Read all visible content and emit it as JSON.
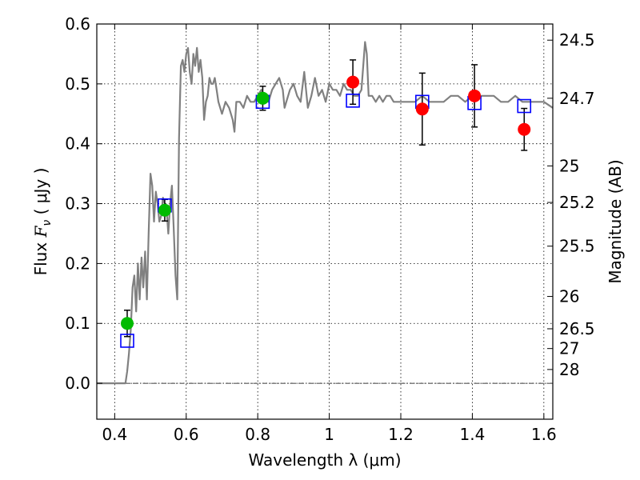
{
  "chart_data": {
    "type": "scatter",
    "xlabel": "Wavelength  λ (μm)",
    "ylabel_prefix": "Flux  ",
    "ylabel_sym": "F",
    "ylabel_sub": "ν",
    "ylabel_suffix": "  ( μJy )",
    "y2label": "Magnitude (AB)",
    "xlim": [
      0.35,
      1.625
    ],
    "ylim": [
      -0.06,
      0.6
    ],
    "xticks": [
      0.4,
      0.6,
      0.8,
      1.0,
      1.2,
      1.4,
      1.6
    ],
    "xtick_labels": [
      "0.4",
      "0.6",
      "0.8",
      "1",
      "1.2",
      "1.4",
      "1.6"
    ],
    "yticks": [
      0.0,
      0.1,
      0.2,
      0.3,
      0.4,
      0.5,
      0.6
    ],
    "ytick_labels": [
      "0.0",
      "0.1",
      "0.2",
      "0.3",
      "0.4",
      "0.5",
      "0.6"
    ],
    "y2ticks": [
      {
        "label": "24.5",
        "flux": 0.573
      },
      {
        "label": "24.7",
        "flux": 0.476
      },
      {
        "label": "25",
        "flux": 0.363
      },
      {
        "label": "25.2",
        "flux": 0.302
      },
      {
        "label": "25.5",
        "flux": 0.229
      },
      {
        "label": "26",
        "flux": 0.145
      },
      {
        "label": "26.5",
        "flux": 0.091
      },
      {
        "label": "27",
        "flux": 0.058
      },
      {
        "label": "28",
        "flux": 0.023
      }
    ],
    "grid": true,
    "zero_line": 0.0,
    "colors": {
      "template": "#808080",
      "green": "#00bb00",
      "red": "#ff0000",
      "model": "#0000ff",
      "errorbar": "#000000"
    },
    "series": [
      {
        "name": "template spectrum",
        "style": "line",
        "x": [
          0.35,
          0.43,
          0.435,
          0.44,
          0.445,
          0.45,
          0.455,
          0.46,
          0.465,
          0.47,
          0.475,
          0.48,
          0.485,
          0.49,
          0.495,
          0.5,
          0.505,
          0.51,
          0.515,
          0.52,
          0.525,
          0.53,
          0.535,
          0.54,
          0.545,
          0.55,
          0.555,
          0.56,
          0.565,
          0.57,
          0.575,
          0.58,
          0.585,
          0.59,
          0.595,
          0.6,
          0.605,
          0.61,
          0.615,
          0.62,
          0.625,
          0.63,
          0.635,
          0.64,
          0.645,
          0.65,
          0.655,
          0.66,
          0.665,
          0.67,
          0.675,
          0.68,
          0.685,
          0.69,
          0.7,
          0.71,
          0.72,
          0.73,
          0.735,
          0.74,
          0.75,
          0.76,
          0.77,
          0.78,
          0.79,
          0.8,
          0.81,
          0.82,
          0.83,
          0.84,
          0.85,
          0.86,
          0.87,
          0.875,
          0.88,
          0.89,
          0.9,
          0.91,
          0.92,
          0.93,
          0.94,
          0.95,
          0.96,
          0.97,
          0.98,
          0.99,
          1.0,
          1.01,
          1.02,
          1.03,
          1.04,
          1.05,
          1.06,
          1.07,
          1.08,
          1.09,
          1.1,
          1.105,
          1.11,
          1.12,
          1.13,
          1.14,
          1.15,
          1.16,
          1.17,
          1.18,
          1.19,
          1.2,
          1.22,
          1.24,
          1.26,
          1.28,
          1.3,
          1.32,
          1.34,
          1.36,
          1.38,
          1.4,
          1.42,
          1.44,
          1.46,
          1.48,
          1.5,
          1.52,
          1.54,
          1.56,
          1.58,
          1.6,
          1.625
        ],
        "y": [
          0.0,
          0.0,
          0.02,
          0.05,
          0.09,
          0.16,
          0.18,
          0.12,
          0.2,
          0.14,
          0.21,
          0.16,
          0.22,
          0.14,
          0.25,
          0.35,
          0.33,
          0.27,
          0.32,
          0.3,
          0.27,
          0.28,
          0.31,
          0.3,
          0.29,
          0.25,
          0.3,
          0.33,
          0.26,
          0.18,
          0.14,
          0.41,
          0.53,
          0.54,
          0.52,
          0.55,
          0.56,
          0.52,
          0.5,
          0.55,
          0.53,
          0.56,
          0.52,
          0.54,
          0.51,
          0.44,
          0.47,
          0.48,
          0.51,
          0.5,
          0.5,
          0.51,
          0.49,
          0.47,
          0.45,
          0.47,
          0.46,
          0.44,
          0.42,
          0.47,
          0.47,
          0.46,
          0.48,
          0.47,
          0.47,
          0.48,
          0.49,
          0.48,
          0.47,
          0.49,
          0.5,
          0.51,
          0.49,
          0.46,
          0.47,
          0.49,
          0.5,
          0.48,
          0.47,
          0.52,
          0.46,
          0.48,
          0.51,
          0.48,
          0.49,
          0.47,
          0.5,
          0.49,
          0.49,
          0.48,
          0.5,
          0.49,
          0.49,
          0.48,
          0.48,
          0.49,
          0.57,
          0.55,
          0.48,
          0.48,
          0.47,
          0.48,
          0.47,
          0.48,
          0.48,
          0.47,
          0.47,
          0.47,
          0.47,
          0.47,
          0.48,
          0.47,
          0.47,
          0.47,
          0.48,
          0.48,
          0.47,
          0.48,
          0.48,
          0.48,
          0.48,
          0.47,
          0.47,
          0.48,
          0.47,
          0.47,
          0.47,
          0.47,
          0.46
        ]
      },
      {
        "name": "green points",
        "style": "marker-circle",
        "points": [
          {
            "x": 0.435,
            "y": 0.1,
            "err": 0.022
          },
          {
            "x": 0.54,
            "y": 0.289,
            "err": 0.018
          },
          {
            "x": 0.814,
            "y": 0.476,
            "err": 0.02
          }
        ]
      },
      {
        "name": "red points",
        "style": "marker-circle",
        "points": [
          {
            "x": 1.066,
            "y": 0.503,
            "err": 0.037
          },
          {
            "x": 1.26,
            "y": 0.458,
            "err": 0.06
          },
          {
            "x": 1.406,
            "y": 0.48,
            "err": 0.052
          },
          {
            "x": 1.545,
            "y": 0.424,
            "err": 0.035
          }
        ]
      },
      {
        "name": "model photometry",
        "style": "marker-square",
        "points": [
          {
            "x": 0.435,
            "y": 0.071
          },
          {
            "x": 0.54,
            "y": 0.297
          },
          {
            "x": 0.814,
            "y": 0.47
          },
          {
            "x": 1.066,
            "y": 0.472
          },
          {
            "x": 1.26,
            "y": 0.47
          },
          {
            "x": 1.406,
            "y": 0.468
          },
          {
            "x": 1.545,
            "y": 0.463
          }
        ]
      }
    ]
  }
}
